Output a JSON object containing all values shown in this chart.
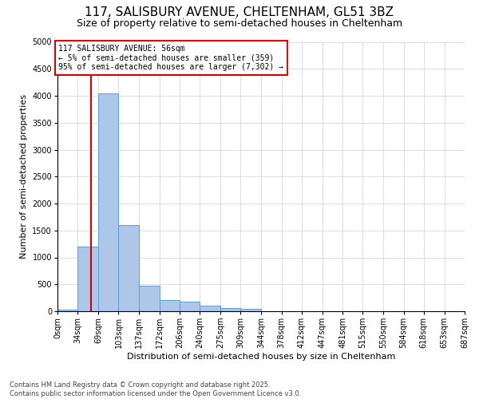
{
  "title_line1": "117, SALISBURY AVENUE, CHELTENHAM, GL51 3BZ",
  "title_line2": "Size of property relative to semi-detached houses in Cheltenham",
  "xlabel": "Distribution of semi-detached houses by size in Cheltenham",
  "ylabel": "Number of semi-detached properties",
  "annotation_text": "117 SALISBURY AVENUE: 56sqm\n← 5% of semi-detached houses are smaller (359)\n95% of semi-detached houses are larger (7,302) →",
  "bin_edges": [
    0,
    34,
    69,
    103,
    137,
    172,
    206,
    240,
    275,
    309,
    344,
    378,
    412,
    447,
    481,
    515,
    550,
    584,
    618,
    653,
    687
  ],
  "bin_counts": [
    30,
    1200,
    4050,
    1600,
    480,
    210,
    175,
    100,
    65,
    50,
    0,
    0,
    0,
    0,
    0,
    0,
    0,
    0,
    0,
    0
  ],
  "bar_color": "#aec6e8",
  "bar_edge_color": "#5a9fd4",
  "vline_color": "#cc0000",
  "vline_x": 56,
  "annotation_box_color": "#ffffff",
  "annotation_box_edge": "#cc0000",
  "grid_color": "#d0d0d0",
  "background_color": "#ffffff",
  "footer_text": "Contains HM Land Registry data © Crown copyright and database right 2025.\nContains public sector information licensed under the Open Government Licence v3.0.",
  "ylim": [
    0,
    5000
  ],
  "yticks": [
    0,
    500,
    1000,
    1500,
    2000,
    2500,
    3000,
    3500,
    4000,
    4500,
    5000
  ],
  "xtick_labels": [
    "0sqm",
    "34sqm",
    "69sqm",
    "103sqm",
    "137sqm",
    "172sqm",
    "206sqm",
    "240sqm",
    "275sqm",
    "309sqm",
    "344sqm",
    "378sqm",
    "412sqm",
    "447sqm",
    "481sqm",
    "515sqm",
    "550sqm",
    "584sqm",
    "618sqm",
    "653sqm",
    "687sqm"
  ],
  "title_fontsize": 11,
  "subtitle_fontsize": 9,
  "ylabel_fontsize": 8,
  "xlabel_fontsize": 8,
  "tick_fontsize": 7,
  "footer_fontsize": 6,
  "annotation_fontsize": 7
}
